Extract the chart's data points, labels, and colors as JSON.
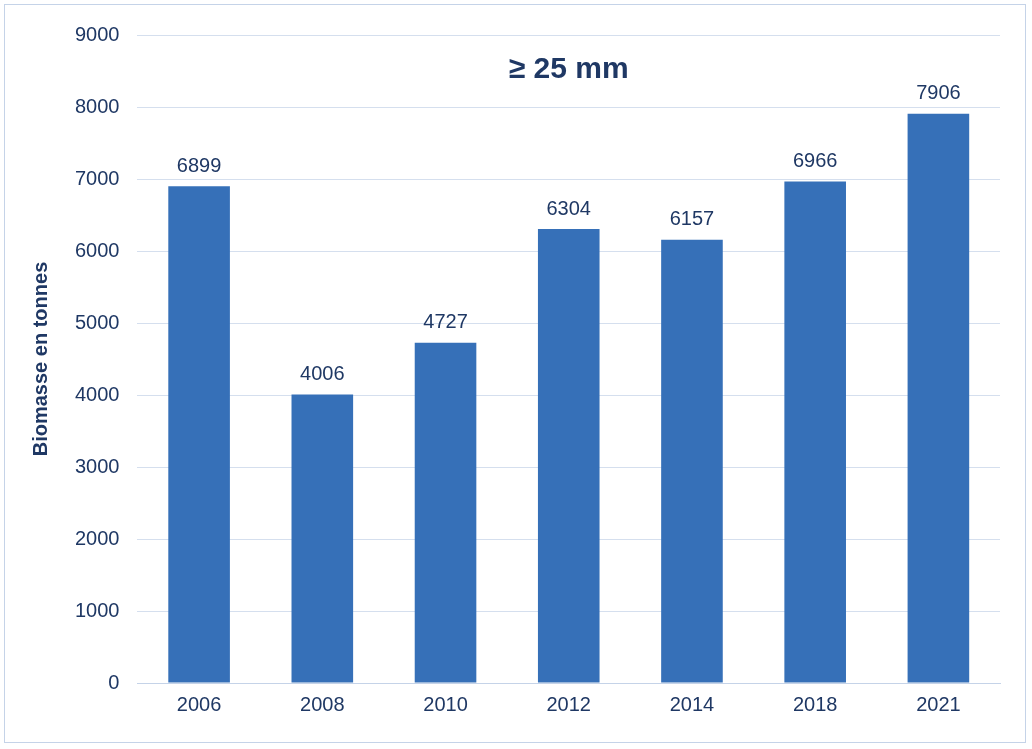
{
  "chart_data": {
    "type": "bar",
    "title": "≥ 25 mm",
    "ylabel": "Biomasse en tonnes",
    "categories": [
      "2006",
      "2008",
      "2010",
      "2012",
      "2014",
      "2018",
      "2021"
    ],
    "values": [
      6899,
      4006,
      4727,
      6304,
      6157,
      6966,
      7906
    ],
    "color": "#3670b8",
    "ylim": [
      0,
      9000
    ],
    "yticks": [
      0,
      1000,
      2000,
      3000,
      4000,
      5000,
      6000,
      7000,
      8000,
      9000
    ],
    "grid": "y",
    "legend": false,
    "data_labels": true
  }
}
